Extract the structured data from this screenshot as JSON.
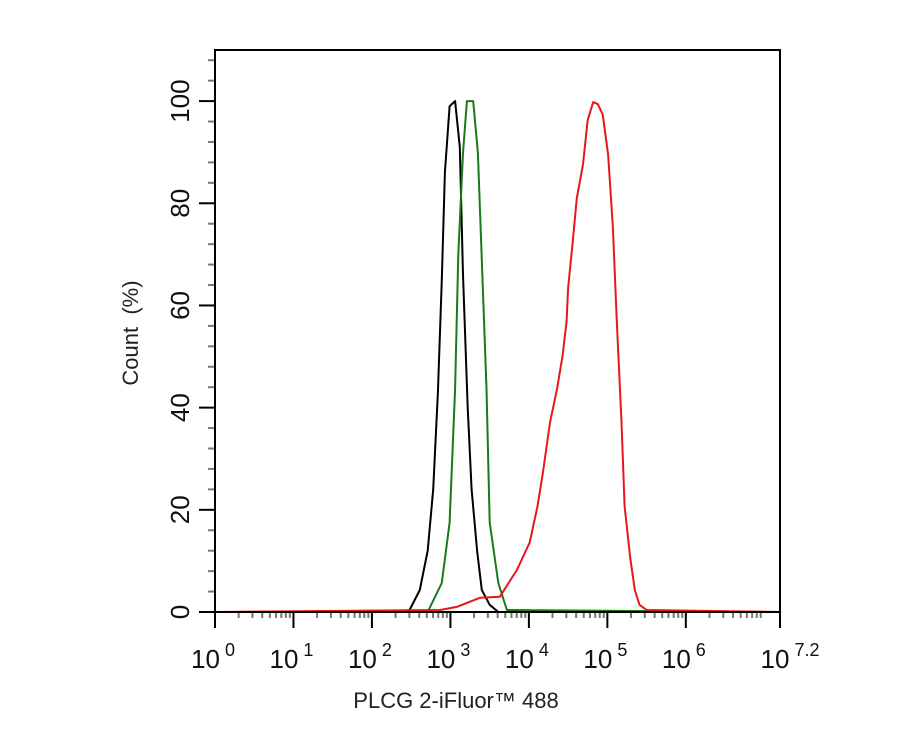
{
  "chart_data": {
    "type": "line",
    "xlabel": "PLCG 2-iFluor™ 488",
    "ylabel": "Count  (%)",
    "xscale": "log10",
    "xlim_log10": [
      0,
      7.2
    ],
    "ylim": [
      0,
      110
    ],
    "grid": false,
    "x_tick_labels": [
      {
        "base": "10",
        "exp": "0",
        "log": 0
      },
      {
        "base": "10",
        "exp": "1",
        "log": 1
      },
      {
        "base": "10",
        "exp": "2",
        "log": 2
      },
      {
        "base": "10",
        "exp": "3",
        "log": 3
      },
      {
        "base": "10",
        "exp": "4",
        "log": 4
      },
      {
        "base": "10",
        "exp": "5",
        "log": 5
      },
      {
        "base": "10",
        "exp": "6",
        "log": 6
      },
      {
        "base": "10",
        "exp": "7.2",
        "log": 7.2
      }
    ],
    "y_ticks": [
      "0",
      "20",
      "40",
      "60",
      "80",
      "100"
    ],
    "series": [
      {
        "color": "#000000",
        "log_x": [
          2.29,
          2.48,
          2.61,
          2.71,
          2.78,
          2.84,
          2.89,
          2.93,
          2.99,
          3.06,
          3.12,
          3.16,
          3.22,
          3.27,
          3.34,
          3.4,
          3.5,
          3.61
        ],
        "y": [
          0,
          0.4,
          4.3,
          12,
          24,
          43,
          65,
          86,
          99,
          100,
          91,
          66,
          40,
          24,
          12,
          4.3,
          1.4,
          0
        ]
      },
      {
        "color": "#1a7a1a",
        "log_x": [
          2.71,
          2.89,
          2.99,
          3.06,
          3.1,
          3.16,
          3.21,
          3.29,
          3.35,
          3.4,
          3.46,
          3.5,
          3.61,
          3.72
        ],
        "y": [
          0,
          5.7,
          17.5,
          43.7,
          70,
          89.8,
          100,
          100,
          89.8,
          68.9,
          43.7,
          17.5,
          5.7,
          0.4
        ]
      },
      {
        "color": "#e8161b",
        "log_x": [
          2.87,
          3.08,
          3.38,
          3.63,
          3.85,
          4.01,
          4.11,
          4.18,
          4.27,
          4.36,
          4.43,
          4.48,
          4.5,
          4.56,
          4.61,
          4.69,
          4.75,
          4.82,
          4.88,
          4.94,
          5.01,
          5.07,
          5.12,
          5.18,
          5.22,
          5.29,
          5.35,
          5.41,
          5.5
        ],
        "y": [
          0.4,
          1,
          2.8,
          3,
          8.3,
          13.6,
          20.7,
          27.4,
          37.2,
          43.7,
          50.2,
          56.9,
          63.4,
          72.6,
          81,
          87.6,
          96.3,
          99.8,
          99.4,
          97.4,
          89.6,
          75.2,
          56.9,
          37.2,
          20.7,
          10.8,
          4.3,
          1.4,
          0.4
        ]
      }
    ]
  }
}
